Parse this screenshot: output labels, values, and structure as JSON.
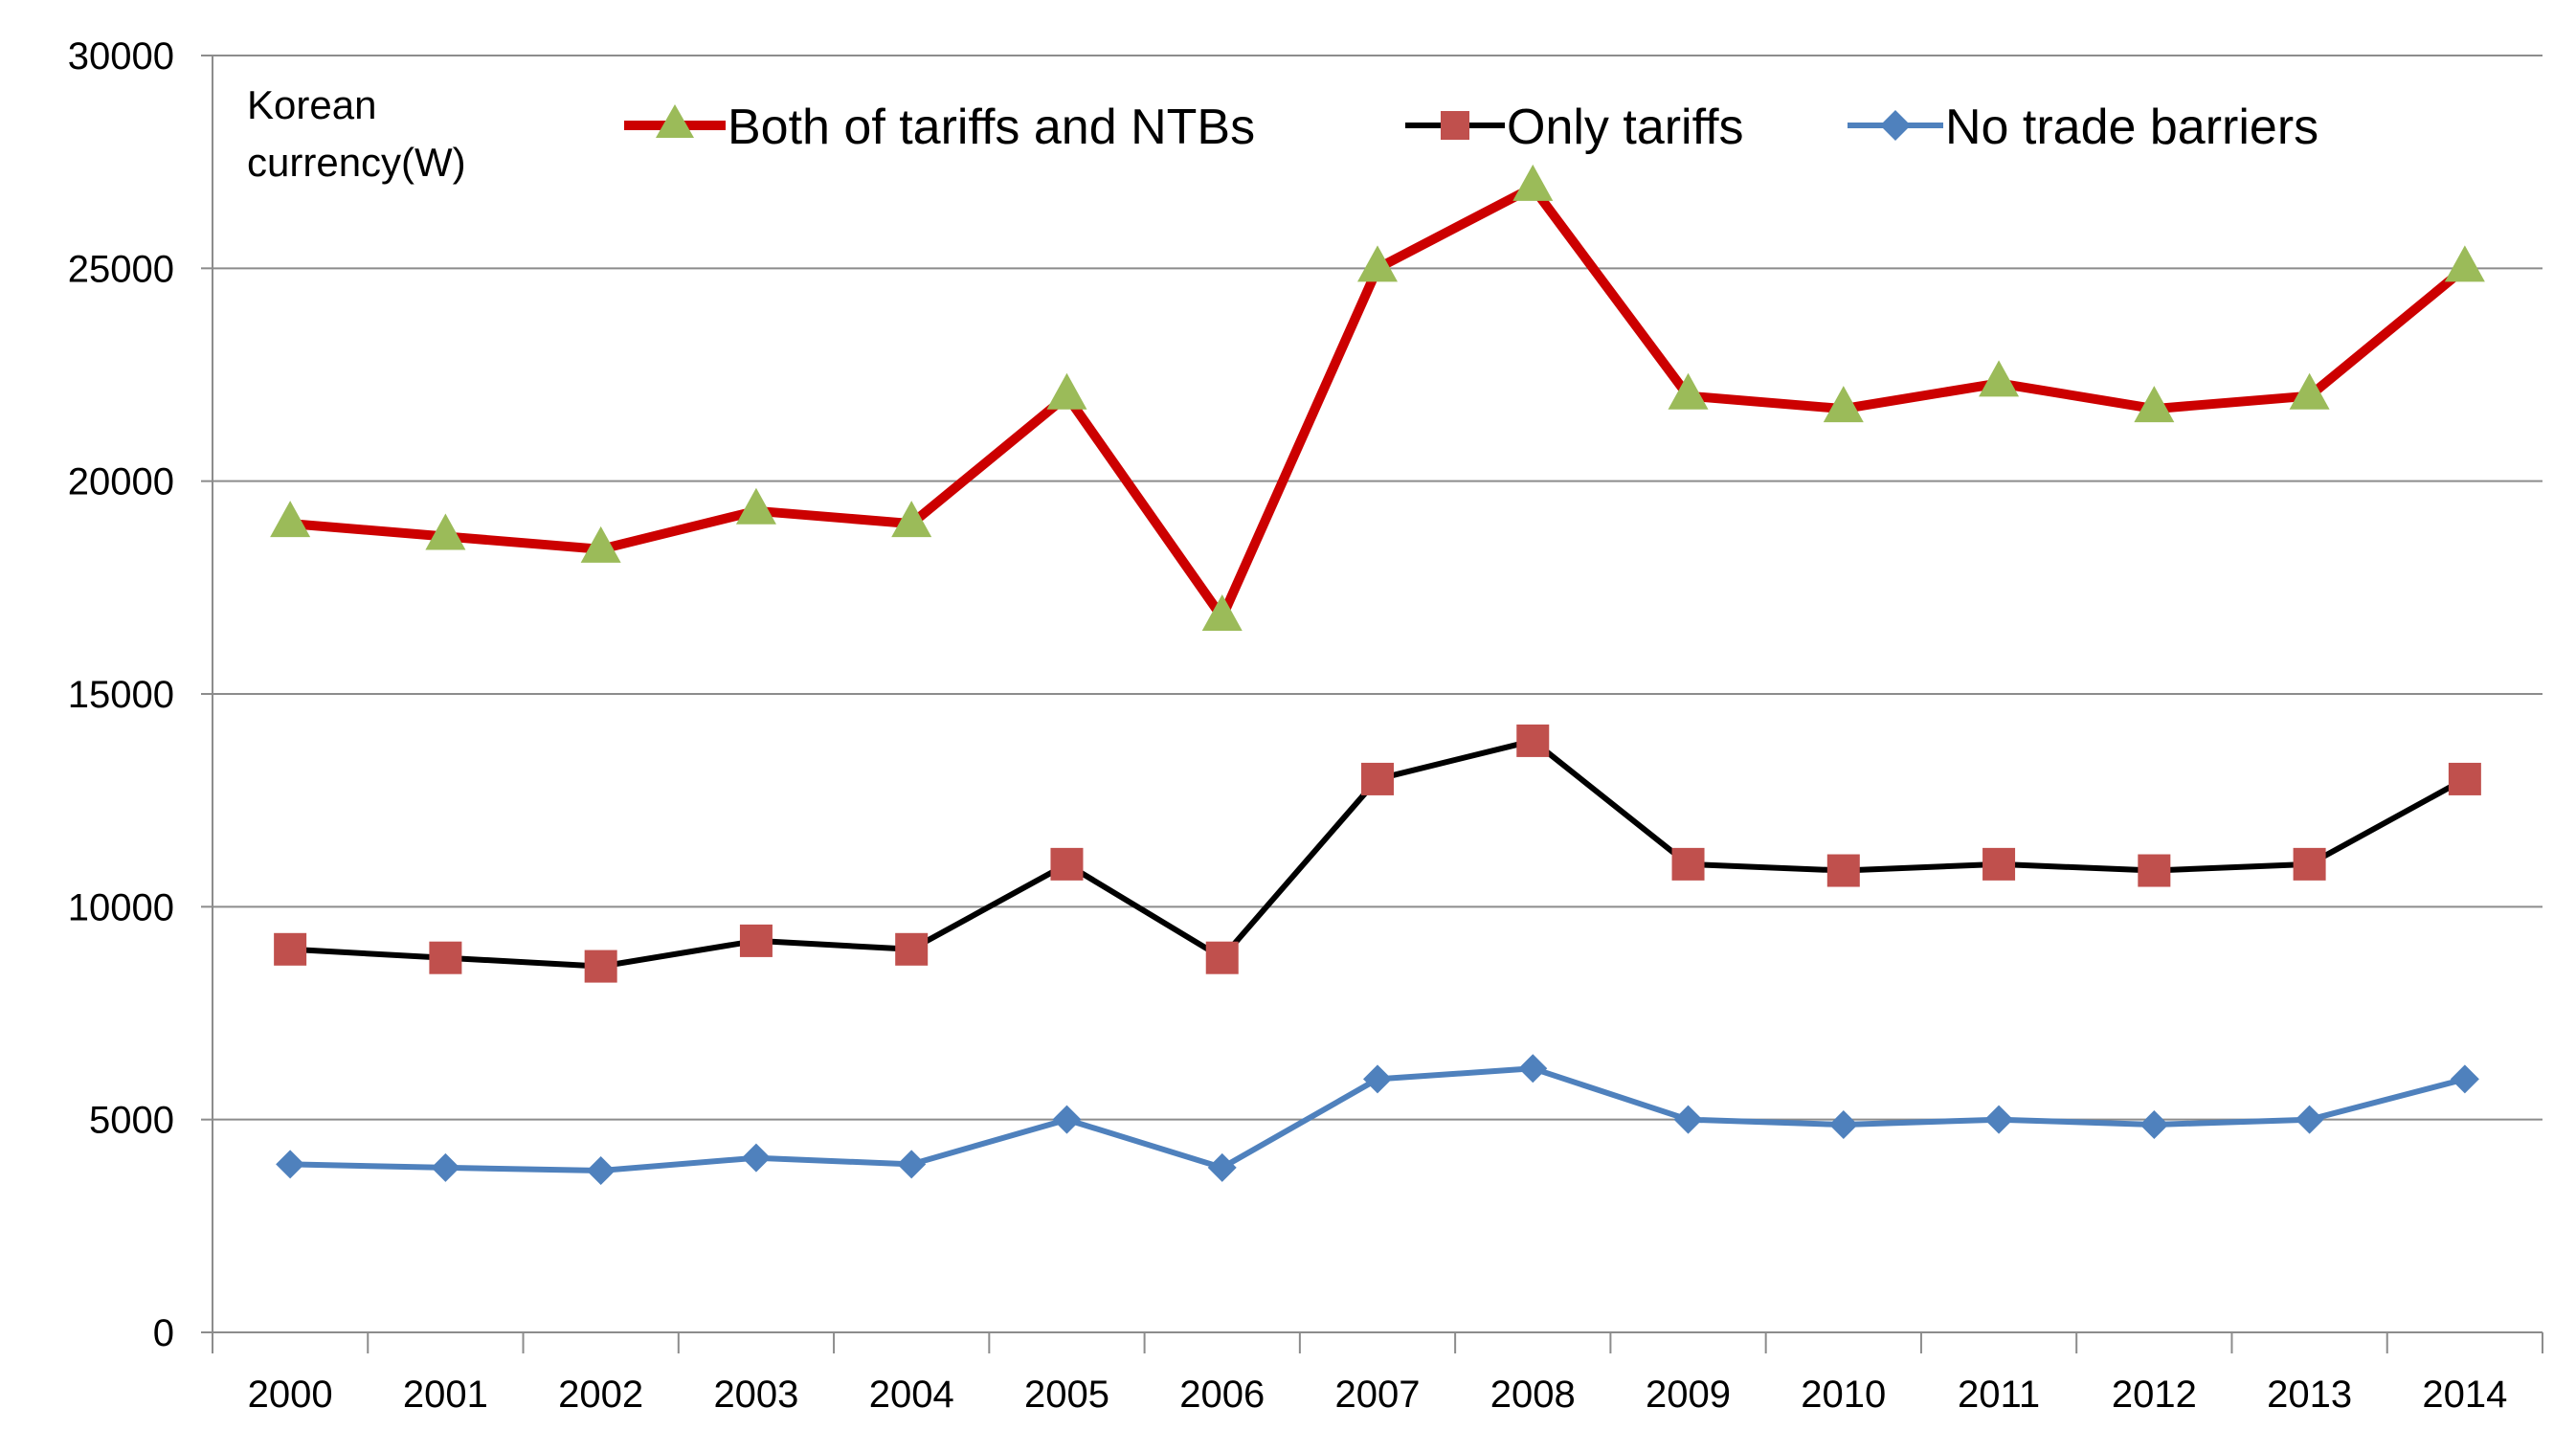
{
  "chart_data": {
    "type": "line",
    "title": "",
    "xlabel": "",
    "ylabel": "",
    "unit_label_lines": [
      "Korean",
      "currency(W)"
    ],
    "categories": [
      "2000",
      "2001",
      "2002",
      "2003",
      "2004",
      "2005",
      "2006",
      "2007",
      "2008",
      "2009",
      "2010",
      "2011",
      "2012",
      "2013",
      "2014"
    ],
    "ylim": [
      0,
      30000
    ],
    "yticks": [
      0,
      5000,
      10000,
      15000,
      20000,
      25000,
      30000
    ],
    "grid": true,
    "legend_position": "top",
    "series": [
      {
        "name": "Both of tariffs and NTBs",
        "line_color": "#cc0000",
        "marker": "triangle",
        "marker_color": "#9bbb59",
        "values": [
          19000,
          18700,
          18400,
          19300,
          19000,
          22000,
          16800,
          25000,
          26900,
          22000,
          21700,
          22300,
          21700,
          22000,
          25000
        ]
      },
      {
        "name": "Only tariffs",
        "line_color": "#000000",
        "marker": "square",
        "marker_color": "#c0504d",
        "values": [
          9000,
          8800,
          8600,
          9200,
          9000,
          11000,
          8800,
          13000,
          13900,
          11000,
          10850,
          11000,
          10850,
          11000,
          13000
        ]
      },
      {
        "name": "No trade barriers",
        "line_color": "#4f81bd",
        "marker": "diamond",
        "marker_color": "#4f81bd",
        "values": [
          3950,
          3870,
          3800,
          4100,
          3950,
          5000,
          3870,
          5950,
          6200,
          5000,
          4880,
          5000,
          4880,
          5000,
          5950
        ]
      }
    ]
  }
}
